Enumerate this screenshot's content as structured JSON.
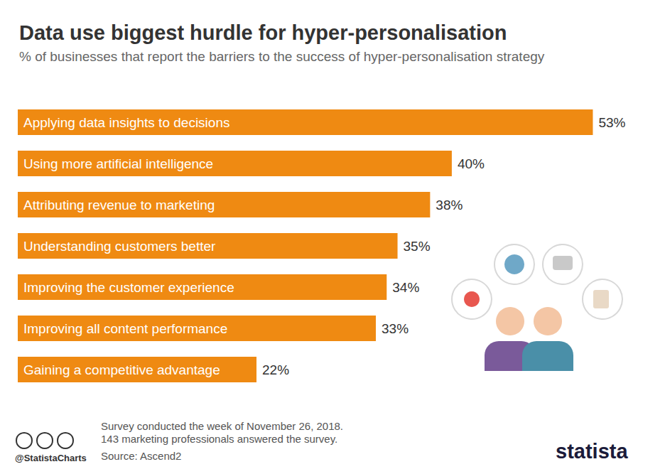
{
  "chart_data": {
    "type": "bar",
    "orientation": "horizontal",
    "title": "Data use biggest hurdle for hyper-personalisation",
    "subtitle": "% of businesses that report the barriers to the success of hyper-personalisation strategy",
    "categories": [
      "Applying data insights to decisions",
      "Using more artificial intelligence",
      "Attributing revenue to marketing",
      "Understanding customers better",
      "Improving the customer experience",
      "Improving all content performance",
      "Gaining a competitive advantage"
    ],
    "values": [
      53,
      40,
      38,
      35,
      34,
      33,
      22
    ],
    "value_labels": [
      "53%",
      "40%",
      "38%",
      "35%",
      "34%",
      "33%",
      "22%"
    ],
    "color": "#ef8a12",
    "xlim": [
      0,
      55
    ],
    "grid": false,
    "data_labels": true,
    "tick_labels": "y",
    "annotations": [
      "Survey conducted the week of November 26, 2018.",
      "143 marketing professionals answered the survey.",
      "Source: Ascend2",
      "@StatistaCharts",
      "statista"
    ]
  }
}
